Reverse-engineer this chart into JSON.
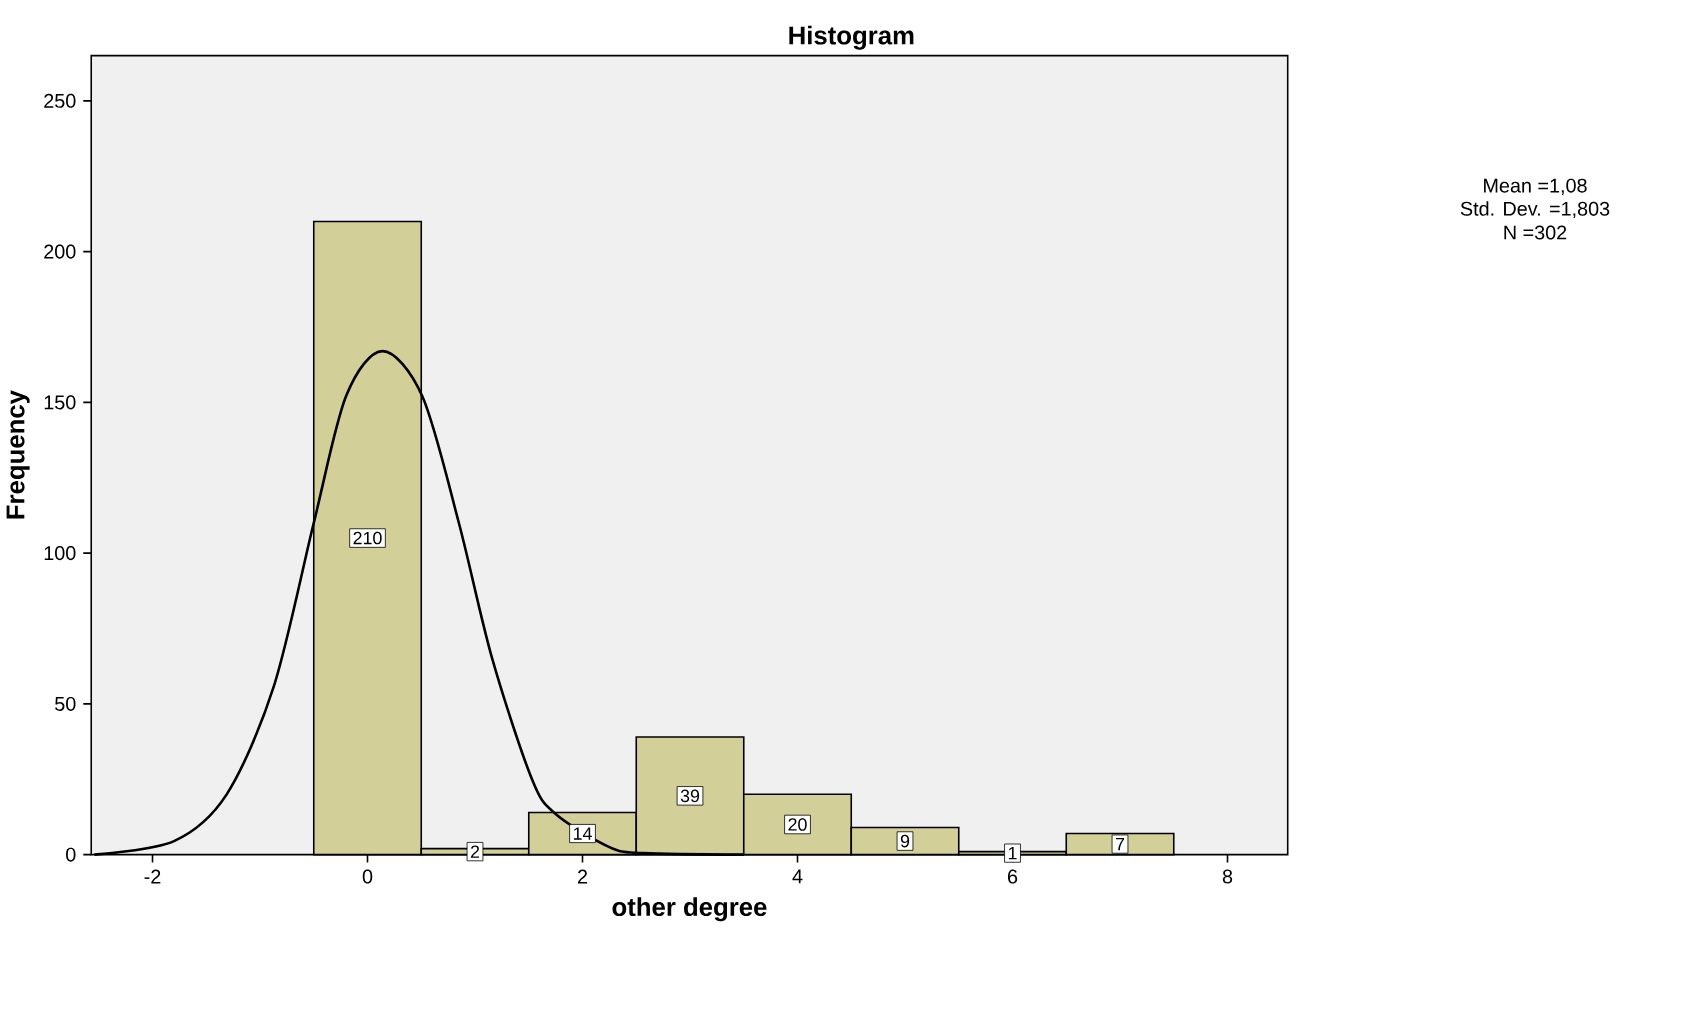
{
  "chart_data": {
    "type": "histogram",
    "title": "Histogram",
    "xlabel": "other degree",
    "ylabel": "Frequency",
    "bins": [
      -0.5,
      0.5,
      1.5,
      2.5,
      3.5,
      4.5,
      5.5,
      6.5,
      7.5
    ],
    "values": [
      210,
      2,
      14,
      39,
      20,
      9,
      1,
      7
    ],
    "color": "#d3cf99",
    "value_labels": [
      "210",
      "2",
      "14",
      "39",
      "20",
      "9",
      "1",
      "7"
    ],
    "series": [
      {
        "type": "line",
        "color": "#000000",
        "x": [
          -2.54,
          -1.8,
          -1.31,
          -0.87,
          -0.5,
          -0.2,
          0.14,
          0.51,
          0.85,
          1.16,
          1.53,
          1.75,
          2.25,
          2.57,
          3.5
        ],
        "values": [
          0,
          4.5,
          20,
          56,
          110,
          152,
          167,
          152,
          110,
          65,
          25,
          13.5,
          2.5,
          0.5,
          0
        ]
      }
    ],
    "xlim": [
      -2.57,
      8.56
    ],
    "ylim": [
      0,
      265
    ],
    "xticks": [
      -2,
      0,
      2,
      4,
      6,
      8
    ],
    "yticks": [
      0,
      50,
      100,
      150,
      200,
      250
    ],
    "grid": false,
    "annotations": [
      "Mean =1,08",
      "Std. Dev. =1,803",
      "N =302"
    ]
  }
}
